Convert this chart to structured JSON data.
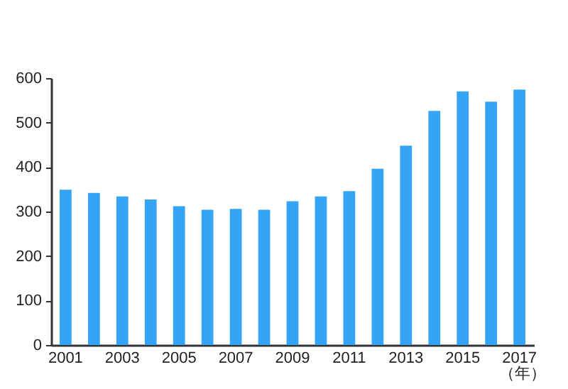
{
  "chart_data": {
    "type": "bar",
    "xlabel": "（年）",
    "categories": [
      "2001",
      null,
      "2003",
      null,
      "2005",
      null,
      "2007",
      null,
      "2009",
      null,
      "2011",
      null,
      "2013",
      null,
      "2015",
      null,
      "2017"
    ],
    "values": [
      349,
      342,
      334,
      327,
      312,
      304,
      306,
      304,
      323,
      334,
      346,
      396,
      448,
      526,
      570,
      547,
      574
    ],
    "color": "#35a4f4",
    "ylim": [
      0,
      600
    ],
    "yticks": [
      0,
      100,
      200,
      300,
      400,
      500,
      600
    ],
    "grid": false
  }
}
